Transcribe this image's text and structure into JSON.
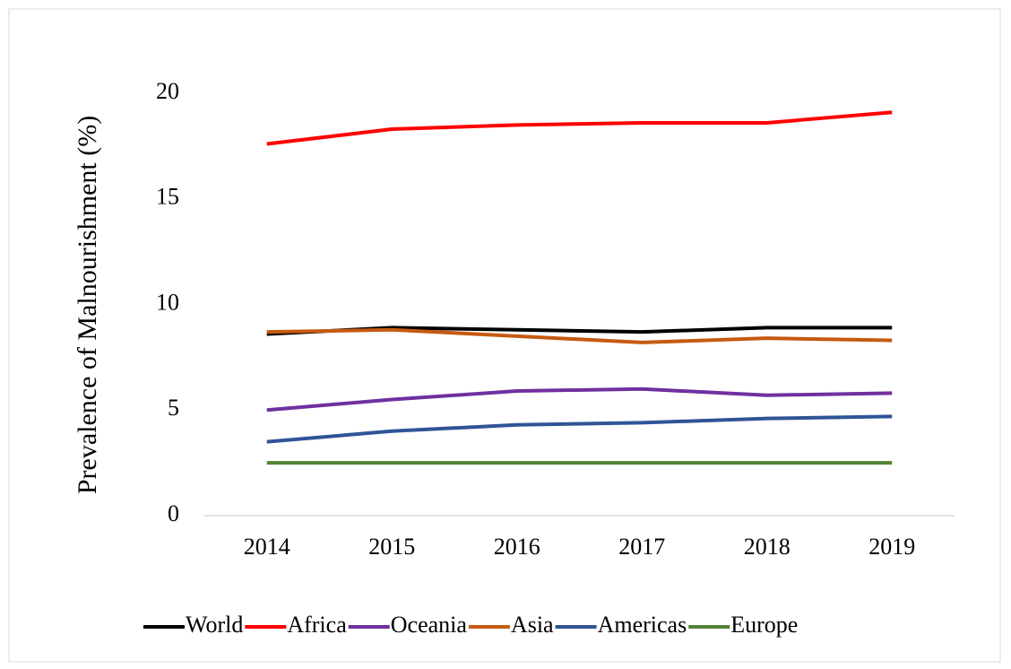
{
  "chart_data": {
    "type": "line",
    "y_label": "Prevalence of Malnourishment (%)",
    "categories": [
      "2014",
      "2015",
      "2016",
      "2017",
      "2018",
      "2019"
    ],
    "series": [
      {
        "name": "World",
        "color": "#000000",
        "values": [
          8.6,
          8.9,
          8.8,
          8.7,
          8.9,
          8.9
        ]
      },
      {
        "name": "Africa",
        "color": "#ff0000",
        "values": [
          17.6,
          18.3,
          18.5,
          18.6,
          18.6,
          19.1
        ]
      },
      {
        "name": "Oceania",
        "color": "#7030a0",
        "values": [
          5.0,
          5.5,
          5.9,
          6.0,
          5.7,
          5.8
        ]
      },
      {
        "name": "Asia",
        "color": "#c55a11",
        "values": [
          8.7,
          8.8,
          8.5,
          8.2,
          8.4,
          8.3
        ]
      },
      {
        "name": "Americas",
        "color": "#2f5597",
        "values": [
          3.5,
          4.0,
          4.3,
          4.4,
          4.6,
          4.7
        ]
      },
      {
        "name": "Europe",
        "color": "#548235",
        "values": [
          2.5,
          2.5,
          2.5,
          2.5,
          2.5,
          2.5
        ]
      }
    ],
    "ylim": [
      0,
      21
    ],
    "yticks": [
      0,
      5,
      10,
      15,
      20
    ],
    "grid": false,
    "legend": "bottom"
  }
}
